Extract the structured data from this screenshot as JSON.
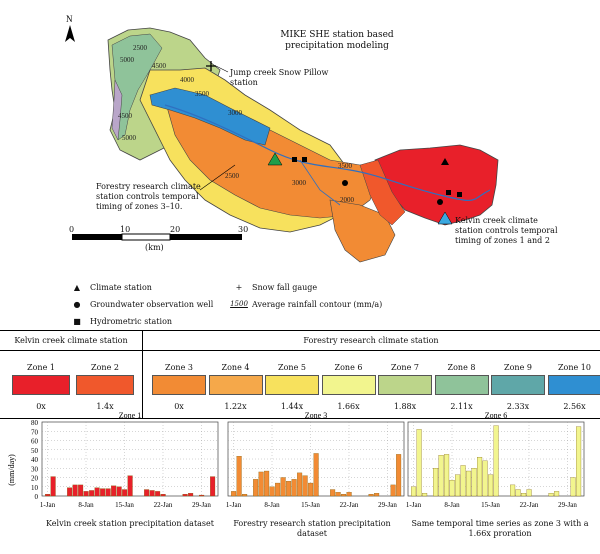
{
  "map": {
    "title": "MIKE SHE station based precipitation modeling",
    "north": "N",
    "jump_creek": "Jump creek Snow Pillow station",
    "forestry_note": "Forestry research climate station controls temporal timing of zones 3–10.",
    "kelvin_note": "Kelvin creek climate station controls temporal timing of zones 1 and 2",
    "scale": {
      "ticks": [
        "0",
        "10",
        "20",
        "30"
      ],
      "unit": "(km)"
    },
    "contours": [
      "2500",
      "5000",
      "4500",
      "4000",
      "3500",
      "3000",
      "2500",
      "3000",
      "2000",
      "4500",
      "5000",
      "3500"
    ]
  },
  "legend": {
    "climate_station": "Climate station",
    "groundwater_well": "Groundwater observation well",
    "hydrometric_station": "Hydrometric station",
    "snow_fall_gauge": "Snow fall gauge",
    "contour_sample": "1500",
    "rainfall_contour": "Average rainfall contour (mm/a)"
  },
  "zones_table": {
    "kelvin_header": "Kelvin creek climate station",
    "forestry_header": "Forestry research climate station",
    "zones": [
      {
        "name": "Zone 1",
        "mult": "0x",
        "color": "#e8202a"
      },
      {
        "name": "Zone 2",
        "mult": "1.4x",
        "color": "#f0582c"
      },
      {
        "name": "Zone 3",
        "mult": "0x",
        "color": "#f28b34"
      },
      {
        "name": "Zone 4",
        "mult": "1.22x",
        "color": "#f5a84a"
      },
      {
        "name": "Zone 5",
        "mult": "1.44x",
        "color": "#f7e15d"
      },
      {
        "name": "Zone 6",
        "mult": "1.66x",
        "color": "#f2f58e"
      },
      {
        "name": "Zone 7",
        "mult": "1.88x",
        "color": "#bcd58a"
      },
      {
        "name": "Zone 8",
        "mult": "2.11x",
        "color": "#8fc39a"
      },
      {
        "name": "Zone 9",
        "mult": "2.33x",
        "color": "#5fa7a8"
      },
      {
        "name": "Zone 10",
        "mult": "2.56x",
        "color": "#2f8fd2"
      }
    ]
  },
  "charts": {
    "ylabel": "(mm/day)",
    "yticks": [
      "0",
      "10",
      "20",
      "30",
      "40",
      "50",
      "60",
      "70",
      "80"
    ],
    "xticks": [
      "1-Jan",
      "8-Jan",
      "15-Jan",
      "22-Jan",
      "29-Jan"
    ],
    "captions": [
      "Kelvin creek station precipitation dataset",
      "Forestry research station precipitation dataset",
      "Same temporal time series as zone 3 with a 1.66x proration"
    ]
  },
  "chart_data": [
    {
      "type": "bar",
      "title": "Zone 1",
      "color": "#e8202a",
      "ylim": [
        0,
        80
      ],
      "x_days": [
        1,
        2,
        3,
        4,
        5,
        6,
        7,
        8,
        9,
        10,
        11,
        12,
        13,
        14,
        15,
        16,
        17,
        18,
        19,
        20,
        21,
        22,
        23,
        24,
        25,
        26,
        27,
        28,
        29,
        30,
        31
      ],
      "values": [
        2,
        21,
        0,
        0,
        9,
        12,
        12,
        5,
        6,
        9,
        8,
        8,
        11,
        10,
        7,
        22,
        0,
        0,
        7,
        6,
        5,
        2,
        0,
        0,
        0,
        2,
        3,
        0,
        1,
        0,
        21
      ]
    },
    {
      "type": "bar",
      "title": "Zone 3",
      "color": "#f28b34",
      "ylim": [
        0,
        80
      ],
      "x_days": [
        1,
        2,
        3,
        4,
        5,
        6,
        7,
        8,
        9,
        10,
        11,
        12,
        13,
        14,
        15,
        16,
        17,
        18,
        19,
        20,
        21,
        22,
        23,
        24,
        25,
        26,
        27,
        28,
        29,
        30,
        31
      ],
      "values": [
        5,
        43,
        2,
        0,
        18,
        26,
        27,
        10,
        14,
        20,
        16,
        18,
        25,
        22,
        14,
        46,
        0,
        0,
        7,
        4,
        2,
        4,
        0,
        0,
        0,
        2,
        3,
        0,
        0,
        12,
        45
      ]
    },
    {
      "type": "bar",
      "title": "Zone 6",
      "color": "#f2f58e",
      "ylim": [
        0,
        80
      ],
      "x_days": [
        1,
        2,
        3,
        4,
        5,
        6,
        7,
        8,
        9,
        10,
        11,
        12,
        13,
        14,
        15,
        16,
        17,
        18,
        19,
        20,
        21,
        22,
        23,
        24,
        25,
        26,
        27,
        28,
        29,
        30,
        31
      ],
      "values": [
        10,
        72,
        3,
        0,
        30,
        44,
        45,
        17,
        23,
        33,
        27,
        30,
        42,
        38,
        23,
        76,
        0,
        0,
        12,
        7,
        3,
        7,
        0,
        0,
        0,
        3,
        5,
        0,
        0,
        20,
        75
      ]
    }
  ]
}
